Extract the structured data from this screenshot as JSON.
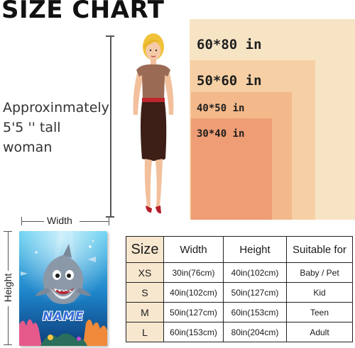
{
  "title": "SIZE CHART",
  "blanket_sizes": [
    {
      "label": "60*80 in",
      "color": "#f7e4c5"
    },
    {
      "label": "50*60 in",
      "color": "#f6d0a4"
    },
    {
      "label": "40*50 in",
      "color": "#f3b98a"
    },
    {
      "label": "30*40 in",
      "color": "#ee9d74"
    }
  ],
  "woman_caption": "Approxinmately 5'5 '' tall woman",
  "dimension_labels": {
    "width": "Width",
    "height": "Height"
  },
  "blanket_preview": {
    "name_text": "NAME",
    "theme": "shark-underwater"
  },
  "table": {
    "headers": [
      "Size",
      "Width",
      "Height",
      "Suitable for"
    ],
    "rows": [
      [
        "XS",
        "30in(76cm)",
        "40in(102cm)",
        "Baby / Pet"
      ],
      [
        "S",
        "40in(102cm)",
        "50in(127cm)",
        "Kid"
      ],
      [
        "M",
        "50in(127cm)",
        "60in(153cm)",
        "Teen"
      ],
      [
        "L",
        "60in(153cm)",
        "80in(204cm)",
        "Adult"
      ]
    ]
  }
}
